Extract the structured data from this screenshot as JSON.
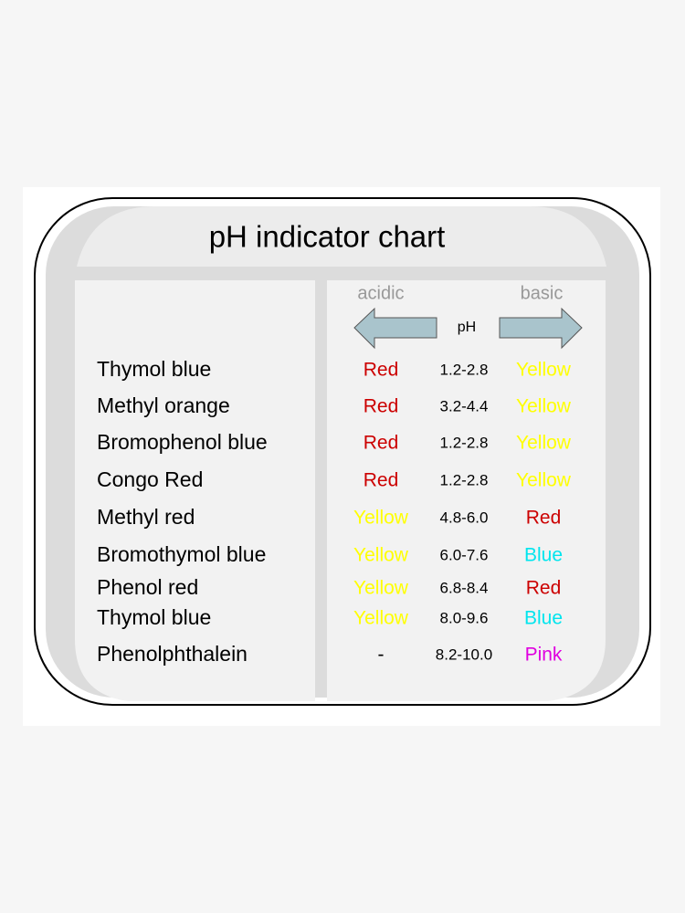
{
  "title": "pH indicator chart",
  "header": {
    "acidic": "acidic",
    "basic": "basic",
    "ph": "pH"
  },
  "rows": [
    {
      "name": "Thymol blue",
      "acidic": "Red",
      "acidic_color": "#cc0000",
      "range": "1.2-2.8",
      "basic": "Yellow",
      "basic_color": "#ffff00"
    },
    {
      "name": "Methyl orange",
      "acidic": "Red",
      "acidic_color": "#cc0000",
      "range": "3.2-4.4",
      "basic": "Yellow",
      "basic_color": "#ffff00"
    },
    {
      "name": "Bromophenol blue",
      "acidic": "Red",
      "acidic_color": "#cc0000",
      "range": "1.2-2.8",
      "basic": "Yellow",
      "basic_color": "#ffff00"
    },
    {
      "name": "Congo Red",
      "acidic": "Red",
      "acidic_color": "#cc0000",
      "range": "1.2-2.8",
      "basic": "Yellow",
      "basic_color": "#ffff00"
    },
    {
      "name": "Methyl red",
      "acidic": "Yellow",
      "acidic_color": "#ffff00",
      "range": "4.8-6.0",
      "basic": "Red",
      "basic_color": "#cc0000"
    },
    {
      "name": "Bromothymol blue",
      "acidic": "Yellow",
      "acidic_color": "#ffff00",
      "range": "6.0-7.6",
      "basic": "Blue",
      "basic_color": "#00e5ee"
    },
    {
      "name": "Phenol red",
      "acidic": "Yellow",
      "acidic_color": "#ffff00",
      "range": "6.8-8.4",
      "basic": "Red",
      "basic_color": "#cc0000"
    },
    {
      "name": "Thymol blue",
      "acidic": "Yellow",
      "acidic_color": "#ffff00",
      "range": "8.0-9.6",
      "basic": "Blue",
      "basic_color": "#00e5ee"
    },
    {
      "name": "Phenolphthalein",
      "acidic": "-",
      "acidic_color": "#000000",
      "range": "8.2-10.0",
      "basic": "Pink",
      "basic_color": "#e000e0"
    }
  ]
}
